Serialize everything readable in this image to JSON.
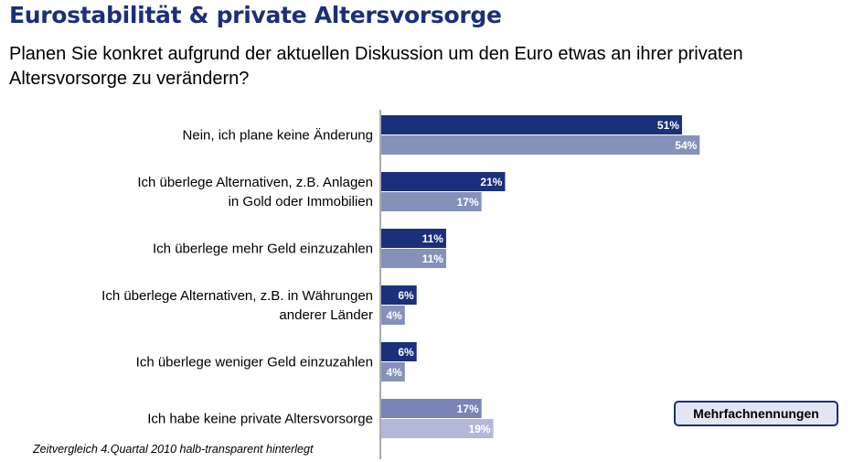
{
  "header": {
    "title": "Eurostabilität & private Altersvorsorge",
    "question": "Planen Sie konkret aufgrund der aktuellen Diskussion um den Euro etwas an ihrer privaten Altersvorsorge zu verändern?"
  },
  "note": "Zeitvergleich 4.Quartal 2010 halb-transparent hinterlegt",
  "badge": "Mehrfachnennungen",
  "colors": {
    "current": "#1b2f7a",
    "previous": "#8591b9",
    "no_provision_current": "#7a82b8",
    "no_provision_previous": "#b3b8d9"
  },
  "chart_data": {
    "type": "bar",
    "orientation": "horizontal",
    "categories": [
      [
        "Nein, ich plane keine Änderung"
      ],
      [
        "Ich überlege Alternativen, z.B. Anlagen",
        "in Gold oder Immobilien"
      ],
      [
        "Ich überlege mehr Geld einzuzahlen"
      ],
      [
        "Ich überlege Alternativen, z.B. in Währungen",
        "anderer Länder"
      ],
      [
        "Ich überlege weniger Geld einzuzahlen"
      ],
      [
        "Ich habe keine private Altersvorsorge"
      ]
    ],
    "series": [
      {
        "values": [
          51,
          21,
          11,
          6,
          6,
          17
        ],
        "labels": [
          "51%",
          "21%",
          "11%",
          "6%",
          "6%",
          "17%"
        ]
      },
      {
        "values": [
          54,
          17,
          11,
          4,
          4,
          19
        ],
        "labels": [
          "54%",
          "17%",
          "11%",
          "4%",
          "4%",
          "19%"
        ]
      }
    ],
    "xlim": [
      0,
      60
    ],
    "grid": false,
    "legend": "none"
  }
}
